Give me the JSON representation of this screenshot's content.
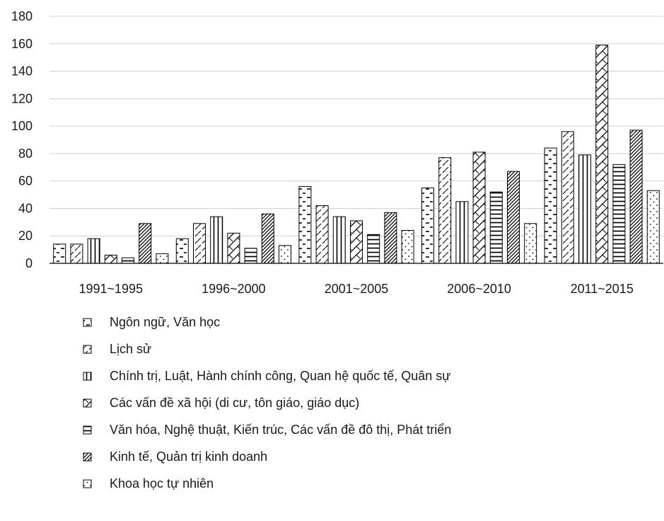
{
  "chart_data": {
    "type": "bar",
    "categories": [
      "1991~1995",
      "1996~2000",
      "2001~2005",
      "2006~2010",
      "2011~2015"
    ],
    "ylim": [
      0,
      180
    ],
    "yticks": [
      0,
      20,
      40,
      60,
      80,
      100,
      120,
      140,
      160,
      180
    ],
    "grid": true,
    "legend_position": "bottom",
    "series": [
      {
        "name": "Ngôn ngữ, Văn học",
        "pattern": "dash",
        "values": [
          14,
          18,
          56,
          55,
          84
        ]
      },
      {
        "name": "Lịch sử",
        "pattern": "diag",
        "values": [
          14,
          29,
          42,
          77,
          96
        ]
      },
      {
        "name": "Chính trị, Luật, Hành chính công, Quan hệ quốc tế, Quân sự",
        "pattern": "vert",
        "values": [
          18,
          34,
          34,
          45,
          79
        ]
      },
      {
        "name": "Các vấn đề xã hội (di cư, tôn giáo, giáo dục)",
        "pattern": "wave",
        "values": [
          6,
          22,
          31,
          81,
          159
        ]
      },
      {
        "name": "Văn hóa, Nghệ thuật, Kiến trúc, Các vấn đề đô thị, Phát triển",
        "pattern": "horiz",
        "values": [
          4,
          11,
          21,
          52,
          72
        ]
      },
      {
        "name": "Kinh tế, Quản trị kinh doanh",
        "pattern": "diagdense",
        "values": [
          29,
          36,
          37,
          67,
          97
        ]
      },
      {
        "name": "Khoa học tự nhiên",
        "pattern": "dots",
        "values": [
          7,
          13,
          24,
          29,
          53
        ]
      }
    ]
  }
}
